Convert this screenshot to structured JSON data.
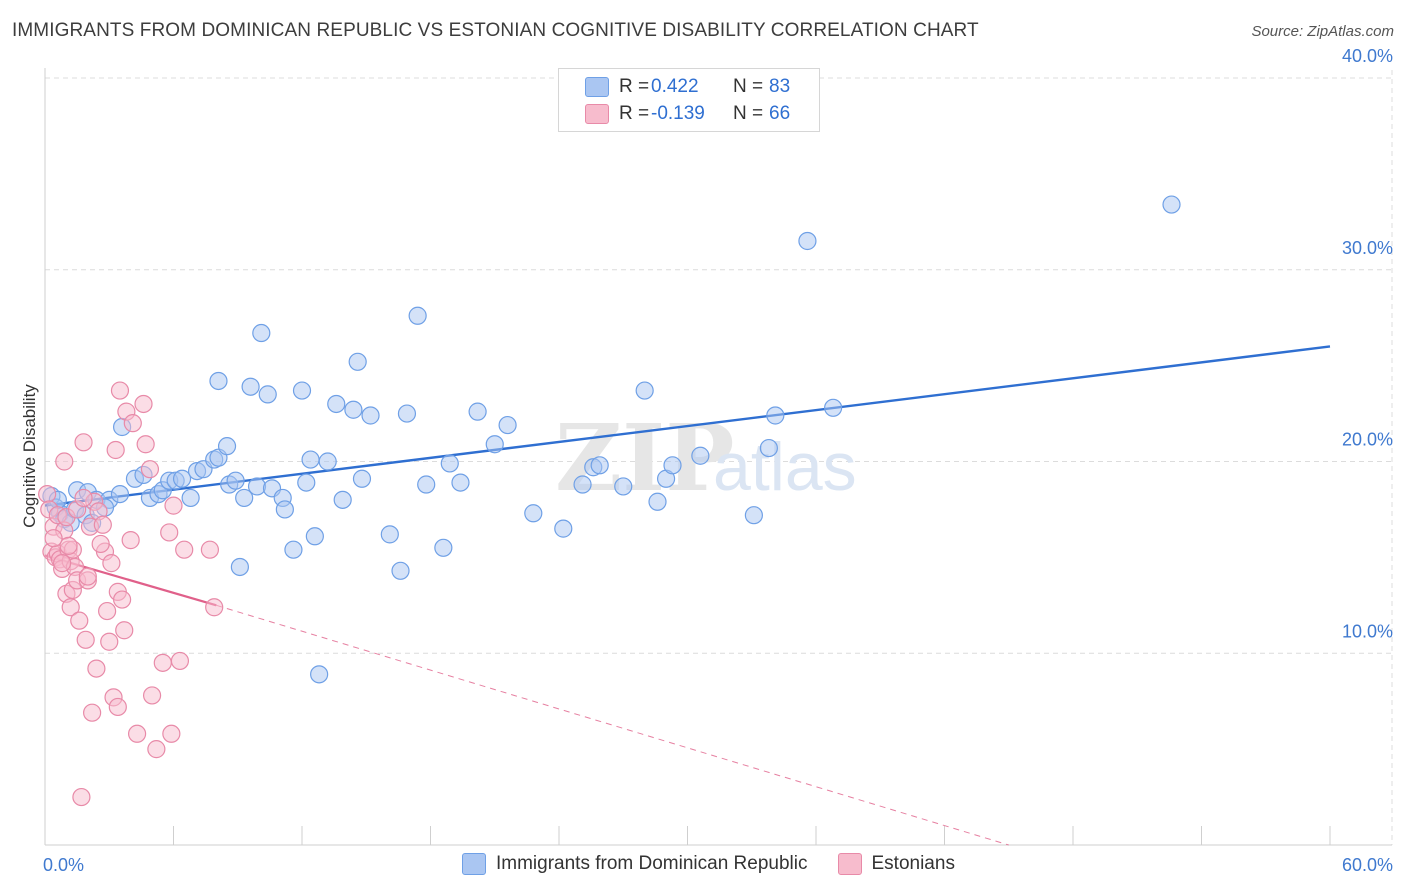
{
  "title": "IMMIGRANTS FROM DOMINICAN REPUBLIC VS ESTONIAN COGNITIVE DISABILITY CORRELATION CHART",
  "source": "Source: ZipAtlas.com",
  "watermark": {
    "zip": "ZIP",
    "atlas": "atlas"
  },
  "colors": {
    "blue": "#6fa0e6",
    "blue_fill": "#aac6f2",
    "blue_line": "#2f6fd1",
    "pink": "#e88aa8",
    "pink_fill": "#f7bccd",
    "pink_line": "#e0608a",
    "axis_text": "#3f79cf",
    "grid": "#dcdcdc"
  },
  "legend_box": {
    "rows": [
      {
        "series": "blue",
        "r_label": "R =",
        "r_value": " 0.422",
        "n_label": "N =",
        "n_value": "83"
      },
      {
        "series": "pink",
        "r_label": "R =",
        "r_value": "-0.139",
        "n_label": "N =",
        "n_value": "66"
      }
    ]
  },
  "legend_bottom": [
    {
      "series": "blue",
      "label": "Immigrants from Dominican Republic"
    },
    {
      "series": "pink",
      "label": "Estonians"
    }
  ],
  "chart_data": {
    "type": "scatter",
    "title": "IMMIGRANTS FROM DOMINICAN REPUBLIC VS ESTONIAN COGNITIVE DISABILITY CORRELATION CHART",
    "xlabel": "",
    "ylabel": "Cognitive Disability",
    "xlim": [
      0,
      60
    ],
    "ylim": [
      0,
      40
    ],
    "x_tick_labels": [
      "0.0%",
      "60.0%"
    ],
    "y_ticks": [
      10,
      20,
      30,
      40
    ],
    "y_tick_labels": [
      "10.0%",
      "20.0%",
      "30.0%",
      "40.0%"
    ],
    "grid": true,
    "series": [
      {
        "name": "Immigrants from Dominican Republic",
        "color": "blue",
        "R": 0.422,
        "N": 83,
        "trend": {
          "x": [
            0,
            60
          ],
          "y": [
            17.7,
            26.0
          ]
        },
        "points": [
          [
            0.3,
            18.2
          ],
          [
            0.5,
            17.6
          ],
          [
            0.7,
            17.3
          ],
          [
            0.9,
            17.0
          ],
          [
            1.2,
            16.8
          ],
          [
            1.4,
            17.5
          ],
          [
            1.5,
            18.5
          ],
          [
            1.9,
            17.2
          ],
          [
            2.0,
            18.4
          ],
          [
            2.2,
            16.8
          ],
          [
            2.4,
            18.0
          ],
          [
            3.0,
            18.0
          ],
          [
            3.5,
            18.3
          ],
          [
            3.6,
            21.8
          ],
          [
            4.2,
            19.1
          ],
          [
            4.6,
            19.3
          ],
          [
            4.9,
            18.1
          ],
          [
            5.3,
            18.3
          ],
          [
            5.5,
            18.5
          ],
          [
            5.8,
            19.0
          ],
          [
            6.1,
            19.0
          ],
          [
            6.4,
            19.1
          ],
          [
            6.8,
            18.1
          ],
          [
            7.1,
            19.5
          ],
          [
            7.4,
            19.6
          ],
          [
            7.9,
            20.1
          ],
          [
            8.1,
            20.2
          ],
          [
            8.5,
            20.8
          ],
          [
            8.1,
            24.2
          ],
          [
            8.6,
            18.8
          ],
          [
            8.9,
            19.0
          ],
          [
            9.1,
            14.5
          ],
          [
            9.3,
            18.1
          ],
          [
            9.6,
            23.9
          ],
          [
            9.9,
            18.7
          ],
          [
            10.1,
            26.7
          ],
          [
            10.4,
            23.5
          ],
          [
            10.6,
            18.6
          ],
          [
            11.1,
            18.1
          ],
          [
            11.2,
            17.5
          ],
          [
            11.6,
            15.4
          ],
          [
            12.0,
            23.7
          ],
          [
            12.2,
            18.9
          ],
          [
            12.4,
            20.1
          ],
          [
            12.6,
            16.1
          ],
          [
            12.8,
            8.9
          ],
          [
            13.2,
            20.0
          ],
          [
            13.6,
            23.0
          ],
          [
            13.9,
            18.0
          ],
          [
            14.4,
            22.7
          ],
          [
            14.6,
            25.2
          ],
          [
            14.8,
            19.1
          ],
          [
            15.2,
            22.4
          ],
          [
            16.1,
            16.2
          ],
          [
            16.6,
            14.3
          ],
          [
            16.9,
            22.5
          ],
          [
            17.4,
            27.6
          ],
          [
            17.8,
            18.8
          ],
          [
            18.6,
            15.5
          ],
          [
            18.9,
            19.9
          ],
          [
            19.4,
            18.9
          ],
          [
            20.2,
            22.6
          ],
          [
            21.0,
            20.9
          ],
          [
            21.6,
            21.9
          ],
          [
            22.8,
            17.3
          ],
          [
            24.2,
            16.5
          ],
          [
            25.1,
            18.8
          ],
          [
            25.6,
            19.7
          ],
          [
            25.9,
            19.8
          ],
          [
            27.0,
            18.7
          ],
          [
            28.0,
            23.7
          ],
          [
            28.6,
            17.9
          ],
          [
            29.0,
            19.1
          ],
          [
            29.3,
            19.8
          ],
          [
            30.6,
            20.3
          ],
          [
            33.1,
            17.2
          ],
          [
            33.8,
            20.7
          ],
          [
            34.1,
            22.4
          ],
          [
            35.6,
            31.5
          ],
          [
            36.8,
            22.8
          ],
          [
            52.6,
            33.4
          ],
          [
            0.6,
            18.0
          ],
          [
            2.8,
            17.6
          ]
        ]
      },
      {
        "name": "Estonians",
        "color": "pink",
        "R": -0.139,
        "N": 66,
        "trend": {
          "x": [
            0,
            8
          ],
          "y": [
            15.1,
            12.5
          ]
        },
        "trend_extended": {
          "x": [
            8,
            45
          ],
          "y": [
            12.5,
            0.0
          ]
        },
        "points": [
          [
            0.1,
            18.3
          ],
          [
            0.2,
            17.5
          ],
          [
            0.3,
            15.3
          ],
          [
            0.4,
            16.6
          ],
          [
            0.5,
            15.0
          ],
          [
            0.6,
            17.2
          ],
          [
            0.6,
            15.2
          ],
          [
            0.7,
            14.9
          ],
          [
            0.8,
            14.4
          ],
          [
            0.9,
            16.4
          ],
          [
            0.9,
            20.0
          ],
          [
            1.0,
            13.1
          ],
          [
            1.0,
            17.1
          ],
          [
            1.1,
            15.4
          ],
          [
            1.2,
            14.8
          ],
          [
            1.2,
            12.4
          ],
          [
            1.3,
            15.4
          ],
          [
            1.3,
            13.3
          ],
          [
            1.4,
            14.5
          ],
          [
            1.5,
            17.5
          ],
          [
            1.5,
            13.8
          ],
          [
            1.6,
            11.7
          ],
          [
            1.7,
            2.5
          ],
          [
            1.8,
            21.0
          ],
          [
            1.9,
            10.7
          ],
          [
            2.0,
            13.8
          ],
          [
            2.1,
            16.6
          ],
          [
            2.2,
            6.9
          ],
          [
            2.3,
            17.9
          ],
          [
            2.4,
            9.2
          ],
          [
            2.5,
            17.4
          ],
          [
            2.7,
            16.7
          ],
          [
            2.8,
            15.3
          ],
          [
            2.9,
            12.2
          ],
          [
            3.0,
            10.6
          ],
          [
            3.1,
            14.7
          ],
          [
            3.2,
            7.7
          ],
          [
            3.3,
            20.6
          ],
          [
            3.4,
            13.2
          ],
          [
            3.4,
            7.2
          ],
          [
            3.5,
            23.7
          ],
          [
            3.6,
            12.8
          ],
          [
            3.7,
            11.2
          ],
          [
            3.8,
            22.6
          ],
          [
            4.0,
            15.9
          ],
          [
            4.1,
            22.0
          ],
          [
            4.3,
            5.8
          ],
          [
            4.6,
            23.0
          ],
          [
            4.7,
            20.9
          ],
          [
            4.9,
            19.6
          ],
          [
            5.2,
            5.0
          ],
          [
            5.0,
            7.8
          ],
          [
            5.5,
            9.5
          ],
          [
            5.8,
            16.3
          ],
          [
            5.9,
            5.8
          ],
          [
            6.0,
            17.7
          ],
          [
            6.3,
            9.6
          ],
          [
            6.5,
            15.4
          ],
          [
            7.7,
            15.4
          ],
          [
            7.9,
            12.4
          ],
          [
            1.1,
            15.6
          ],
          [
            0.4,
            16.0
          ],
          [
            2.6,
            15.7
          ],
          [
            0.8,
            14.7
          ],
          [
            1.8,
            18.1
          ],
          [
            2.0,
            14.0
          ]
        ]
      }
    ]
  }
}
